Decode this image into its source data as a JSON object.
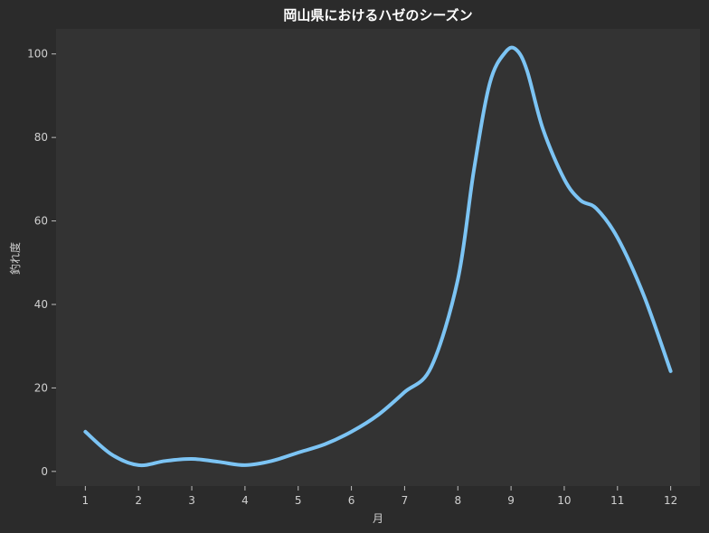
{
  "chart_data": {
    "type": "line",
    "title": "岡山県におけるハゼのシーズン",
    "xlabel": "月",
    "ylabel": "釣れ度",
    "x": [
      1,
      1.5,
      2,
      2.5,
      3,
      3.5,
      4,
      4.5,
      5,
      5.5,
      6,
      6.5,
      7,
      7.5,
      8,
      8.3,
      8.6,
      8.9,
      9.1,
      9.3,
      9.6,
      10,
      10.3,
      10.6,
      11,
      11.5,
      12
    ],
    "values": [
      9.5,
      4,
      1.5,
      2.5,
      3,
      2.3,
      1.5,
      2.5,
      4.5,
      6.5,
      9.5,
      13.5,
      19,
      25,
      46,
      72,
      93,
      100.5,
      101,
      96,
      82,
      70,
      65,
      63,
      56,
      42,
      24
    ],
    "xlim": [
      0.45,
      12.55
    ],
    "ylim": [
      -3.5,
      106
    ],
    "xticks": [
      1,
      2,
      3,
      4,
      5,
      6,
      7,
      8,
      9,
      10,
      11,
      12
    ],
    "yticks": [
      0,
      20,
      40,
      60,
      80,
      100
    ],
    "grid": false,
    "colors": {
      "background": "#2b2b2b",
      "plot_background": "#333333",
      "line": "#7cc4f4"
    }
  }
}
